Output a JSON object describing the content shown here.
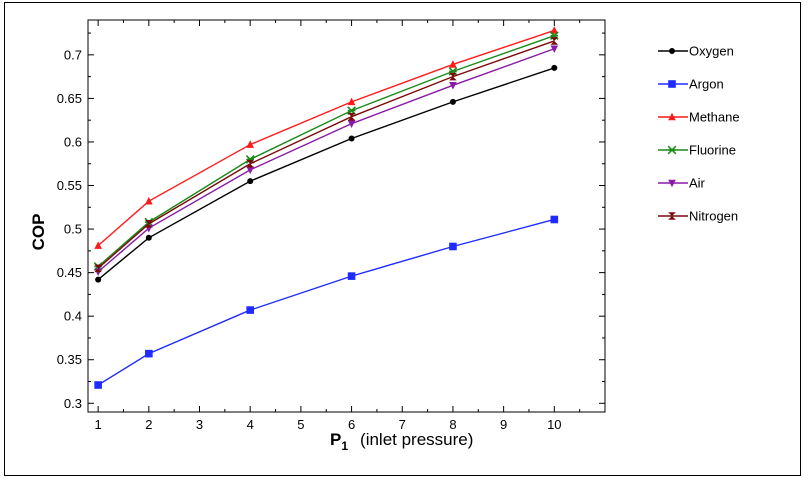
{
  "chart_data": {
    "type": "line",
    "title": "",
    "xlabel": "P",
    "xlabel_subscript": "1",
    "xlabel_suffix": "(inlet pressure)",
    "ylabel": "COP",
    "xlim": [
      0.8,
      11.0
    ],
    "ylim": [
      0.29,
      0.74
    ],
    "x_ticks": [
      1,
      2,
      3,
      4,
      5,
      6,
      7,
      8,
      9,
      10
    ],
    "y_ticks": [
      0.3,
      0.35,
      0.4,
      0.45,
      0.5,
      0.55,
      0.6,
      0.65,
      0.7
    ],
    "y_tick_labels": [
      "0.3",
      "0.35",
      "0.4",
      "0.45",
      "0.5",
      "0.55",
      "0.6",
      "0.65",
      "0.7"
    ],
    "x": [
      1,
      2,
      4,
      6,
      8,
      10
    ],
    "legend_position": "right",
    "series": [
      {
        "name": "Oxygen",
        "color": "#000000",
        "marker": "circle",
        "values": [
          0.442,
          0.49,
          0.555,
          0.604,
          0.646,
          0.685
        ]
      },
      {
        "name": "Argon",
        "color": "#1f2bff",
        "marker": "square",
        "values": [
          0.321,
          0.357,
          0.407,
          0.446,
          0.48,
          0.511
        ]
      },
      {
        "name": "Methane",
        "color": "#ff1a1a",
        "marker": "triangle-up",
        "values": [
          0.481,
          0.532,
          0.597,
          0.646,
          0.689,
          0.728
        ]
      },
      {
        "name": "Fluorine",
        "color": "#1a8a1a",
        "marker": "star",
        "values": [
          0.457,
          0.508,
          0.58,
          0.636,
          0.681,
          0.722
        ]
      },
      {
        "name": "Air",
        "color": "#8a1aa8",
        "marker": "triangle-down",
        "values": [
          0.451,
          0.501,
          0.568,
          0.621,
          0.665,
          0.707
        ]
      },
      {
        "name": "Nitrogen",
        "color": "#7a0a0a",
        "marker": "hourglass",
        "values": [
          0.455,
          0.506,
          0.575,
          0.629,
          0.675,
          0.716
        ]
      }
    ]
  }
}
